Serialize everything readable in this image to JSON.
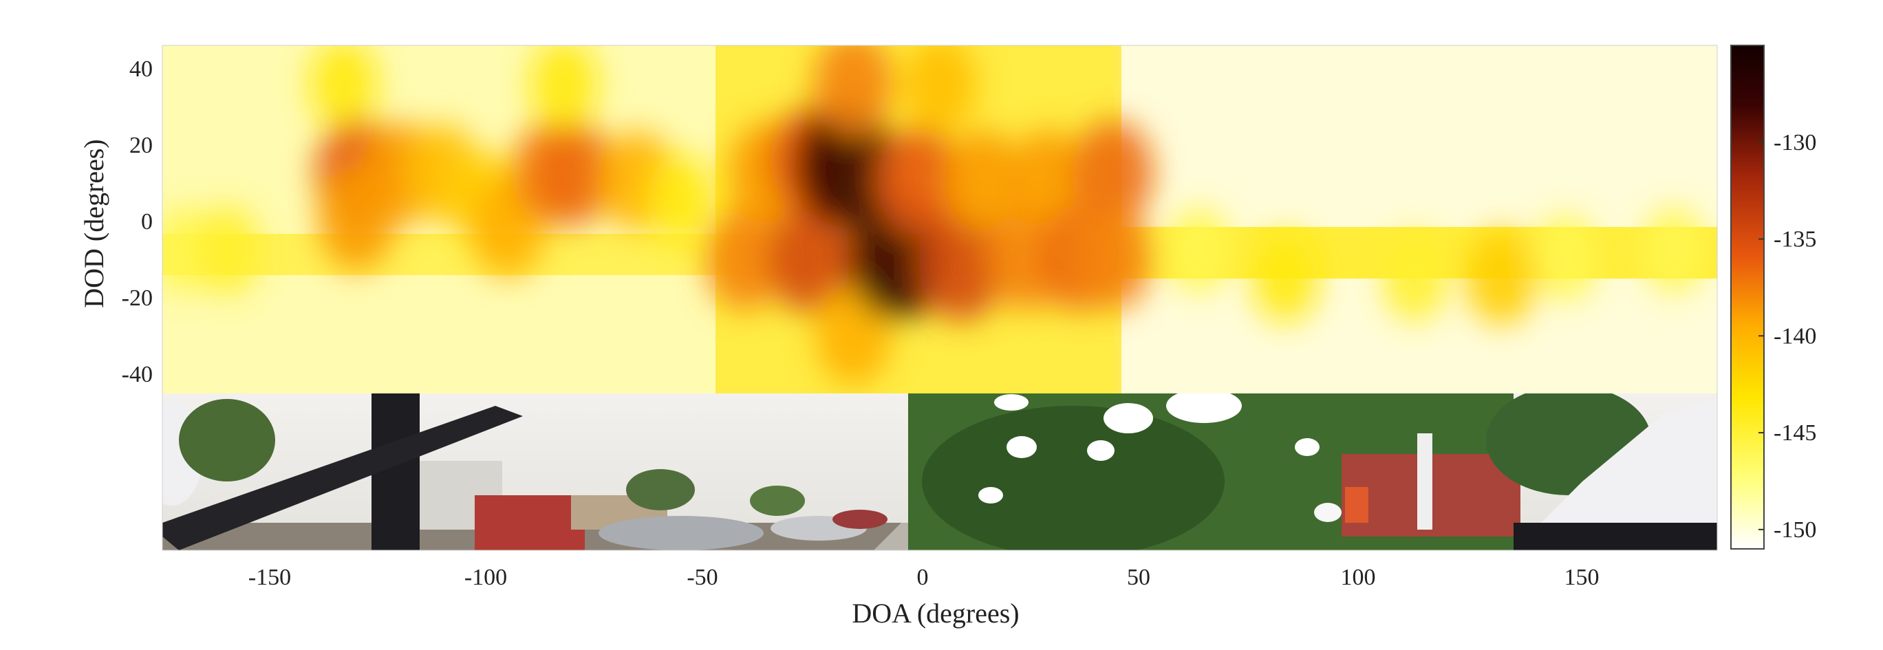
{
  "chart_data": {
    "type": "heatmap",
    "xlabel": "DOA (degrees)",
    "ylabel": "DOD (degrees)",
    "xlim": [
      -180,
      180
    ],
    "ylim": [
      -45,
      45
    ],
    "xticks": [
      -150,
      -100,
      -50,
      0,
      50,
      100,
      150
    ],
    "yticks": [
      40,
      20,
      0,
      -20,
      -40
    ],
    "colorbar": {
      "ticks": [
        -130,
        -135,
        -140,
        -145,
        -150
      ],
      "range": [
        -151,
        -125
      ],
      "colormap": [
        "#ffffff",
        "#ffff7a",
        "#ffe600",
        "#ffae00",
        "#e8580f",
        "#a3260b",
        "#3b0303",
        "#140000"
      ]
    },
    "grid": false,
    "panorama_strip": "photo of street scene: parked cars, trees, white roses, building",
    "cells": [
      {
        "doa": -175,
        "dod": -8,
        "value": -146
      },
      {
        "doa": -165,
        "dod": -8,
        "value": -145
      },
      {
        "doa": -138,
        "dod": 35,
        "value": -144
      },
      {
        "doa": -135,
        "dod": 12,
        "value": -136
      },
      {
        "doa": -135,
        "dod": 0,
        "value": -139
      },
      {
        "doa": -125,
        "dod": 12,
        "value": -139
      },
      {
        "doa": -115,
        "dod": 12,
        "value": -141
      },
      {
        "doa": -105,
        "dod": 5,
        "value": -142
      },
      {
        "doa": -100,
        "dod": -2,
        "value": -140
      },
      {
        "doa": -90,
        "dod": 12,
        "value": -138
      },
      {
        "doa": -85,
        "dod": 12,
        "value": -137
      },
      {
        "doa": -87,
        "dod": 35,
        "value": -144
      },
      {
        "doa": -70,
        "dod": 10,
        "value": -140
      },
      {
        "doa": -60,
        "dod": 5,
        "value": -144
      },
      {
        "doa": -45,
        "dod": -10,
        "value": -138
      },
      {
        "doa": -40,
        "dod": 12,
        "value": -139
      },
      {
        "doa": -30,
        "dod": -10,
        "value": -135
      },
      {
        "doa": -30,
        "dod": 15,
        "value": -136
      },
      {
        "doa": -22,
        "dod": 14,
        "value": -128
      },
      {
        "doa": -20,
        "dod": 35,
        "value": -138
      },
      {
        "doa": -20,
        "dod": -30,
        "value": -140
      },
      {
        "doa": -10,
        "dod": -10,
        "value": -128
      },
      {
        "doa": -5,
        "dod": 10,
        "value": -136
      },
      {
        "doa": 0,
        "dod": 35,
        "value": -141
      },
      {
        "doa": 5,
        "dod": -12,
        "value": -135
      },
      {
        "doa": 10,
        "dod": 10,
        "value": -139
      },
      {
        "doa": 20,
        "dod": -10,
        "value": -138
      },
      {
        "doa": 25,
        "dod": 10,
        "value": -139
      },
      {
        "doa": 32,
        "dod": -10,
        "value": -137
      },
      {
        "doa": 40,
        "dod": 12,
        "value": -137
      },
      {
        "doa": 40,
        "dod": -10,
        "value": -138
      },
      {
        "doa": 60,
        "dod": -8,
        "value": -146
      },
      {
        "doa": 80,
        "dod": -15,
        "value": -144
      },
      {
        "doa": 110,
        "dod": -15,
        "value": -145
      },
      {
        "doa": 130,
        "dod": -15,
        "value": -142
      },
      {
        "doa": 145,
        "dod": -10,
        "value": -146
      },
      {
        "doa": 170,
        "dod": -8,
        "value": -146
      }
    ]
  }
}
